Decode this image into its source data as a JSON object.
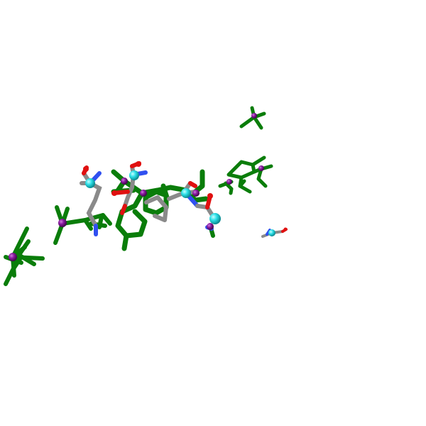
{
  "scene": {
    "background": "#ffffff",
    "colors": {
      "carbon_green": "#0a7d0a",
      "carbon_grey": "#8a8a8a",
      "oxygen": "#e01010",
      "nitrogen": "#3050f0",
      "calpha_cyan": "#2de0e8",
      "calpha_purple": "#8a1aa0"
    },
    "description_icon": "molecule-ligand-binding-site",
    "style": "licorice sticks with ball atoms"
  }
}
